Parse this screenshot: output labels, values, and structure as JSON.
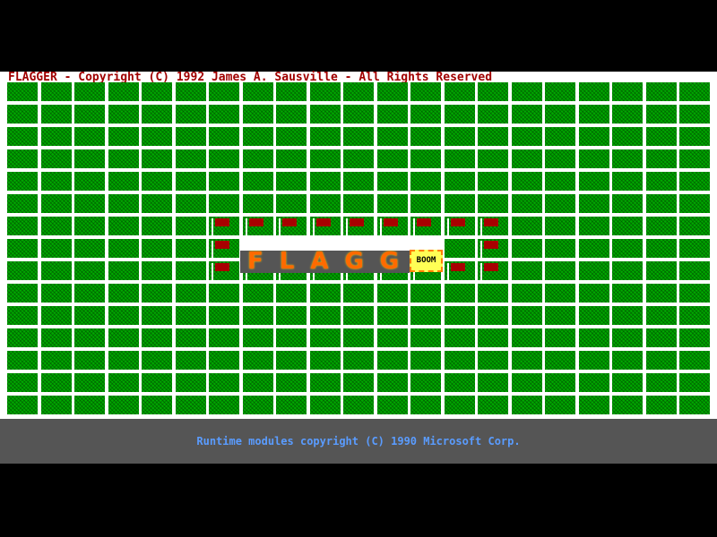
{
  "title": "FLAGGER - Copyright (C) 1992 James A. Sausville - All Rights Reserved",
  "footer": "Runtime modules copyright (C) 1990 Microsoft Corp.",
  "board": {
    "columns": 21,
    "rows": 15,
    "flags": [
      [
        6,
        6
      ],
      [
        6,
        7
      ],
      [
        6,
        8
      ],
      [
        6,
        9
      ],
      [
        6,
        10
      ],
      [
        6,
        11
      ],
      [
        6,
        12
      ],
      [
        6,
        13
      ],
      [
        6,
        14
      ],
      [
        7,
        6
      ],
      [
        7,
        14
      ],
      [
        8,
        6
      ],
      [
        8,
        7
      ],
      [
        8,
        8
      ],
      [
        8,
        9
      ],
      [
        8,
        10
      ],
      [
        8,
        11
      ],
      [
        8,
        12
      ],
      [
        8,
        13
      ],
      [
        8,
        14
      ]
    ],
    "banner_text": "FLAGG",
    "boom_text": "BOOM"
  },
  "colors": {
    "cell": "#00a800",
    "flag": "#a80000",
    "title": "#a00000",
    "footer_text": "#5a9cff",
    "footer_bg": "#555555"
  }
}
